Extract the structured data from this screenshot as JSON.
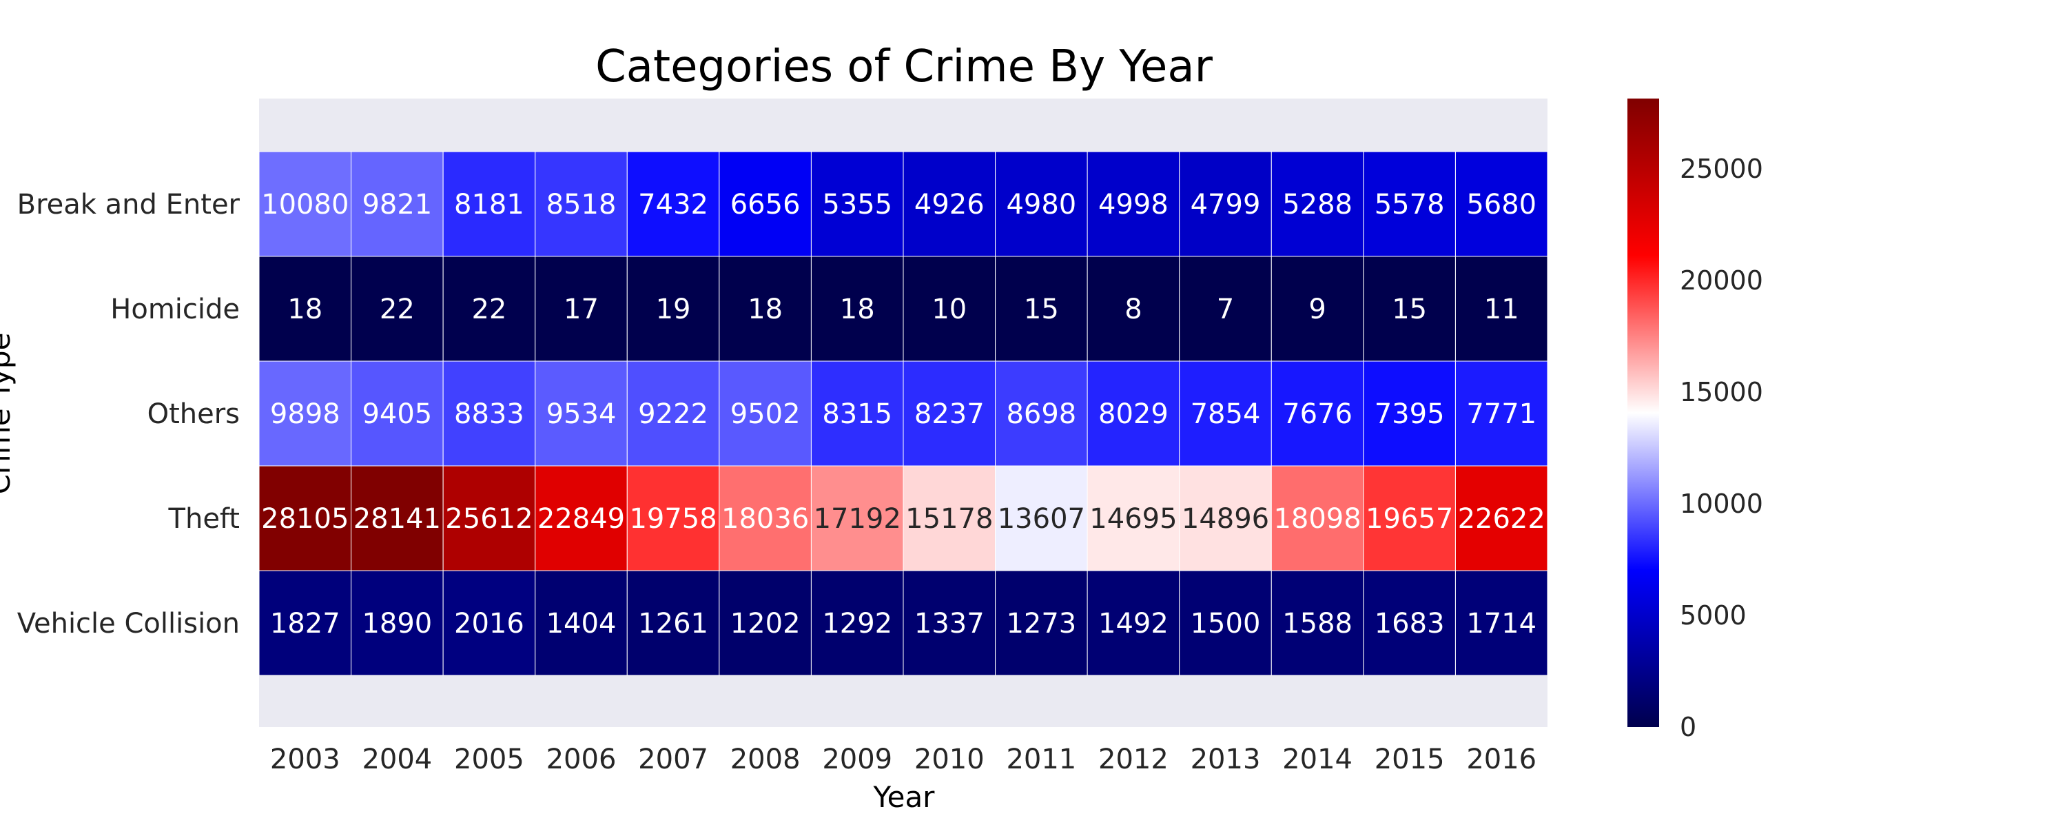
{
  "chart_data": {
    "type": "heatmap",
    "title": "Categories of Crime By Year",
    "xlabel": "Year",
    "ylabel": "Crime Type",
    "x": [
      "2003",
      "2004",
      "2005",
      "2006",
      "2007",
      "2008",
      "2009",
      "2010",
      "2011",
      "2012",
      "2013",
      "2014",
      "2015",
      "2016"
    ],
    "y": [
      "Break and Enter",
      "Homicide",
      "Others",
      "Theft",
      "Vehicle Collision"
    ],
    "values": [
      [
        10080,
        9821,
        8181,
        8518,
        7432,
        6656,
        5355,
        4926,
        4980,
        4998,
        4799,
        5288,
        5578,
        5680
      ],
      [
        18,
        22,
        22,
        17,
        19,
        18,
        18,
        10,
        15,
        8,
        7,
        9,
        15,
        11
      ],
      [
        9898,
        9405,
        8833,
        9534,
        9222,
        9502,
        8315,
        8237,
        8698,
        8029,
        7854,
        7676,
        7395,
        7771
      ],
      [
        28105,
        28141,
        25612,
        22849,
        19758,
        18036,
        17192,
        15178,
        13607,
        14695,
        14896,
        18098,
        19657,
        22622
      ],
      [
        1827,
        1890,
        2016,
        1404,
        1261,
        1202,
        1292,
        1337,
        1273,
        1492,
        1500,
        1588,
        1683,
        1714
      ]
    ],
    "colormap": "seismic",
    "colorbar": {
      "range": [
        0,
        28141
      ],
      "ticks": [
        "0",
        "5000",
        "10000",
        "15000",
        "20000",
        "25000"
      ]
    },
    "grid": false
  },
  "colors": {
    "background": "#ffffff",
    "plot_background": "#eaeaf2",
    "cell_divider": "#ffffff",
    "text": "#262626"
  }
}
